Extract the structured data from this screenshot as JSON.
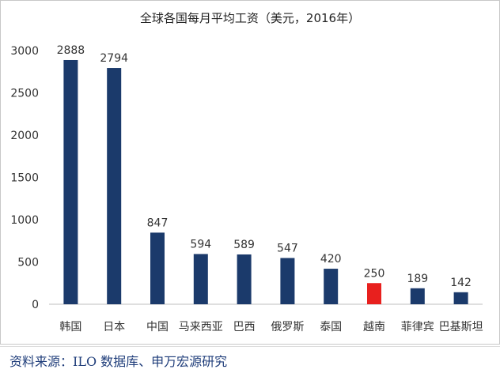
{
  "source_text": "资料来源：ILO 数据库、申万宏源研究",
  "chart_data": {
    "type": "bar",
    "title": "全球各国每月平均工资（美元，2016年）",
    "categories": [
      "韩国",
      "日本",
      "中国",
      "马来西亚",
      "巴西",
      "俄罗斯",
      "泰国",
      "越南",
      "菲律宾",
      "巴基斯坦"
    ],
    "values": [
      2888,
      2794,
      847,
      594,
      589,
      547,
      420,
      250,
      189,
      142
    ],
    "yticks": [
      0,
      500,
      1000,
      1500,
      2000,
      2500,
      3000
    ],
    "ylim": [
      0,
      3000
    ],
    "xlabel": "",
    "ylabel": "",
    "grid": false,
    "colors": {
      "default": "#1b3a6b",
      "highlight": "#e8201e",
      "highlight_category": "越南"
    }
  }
}
